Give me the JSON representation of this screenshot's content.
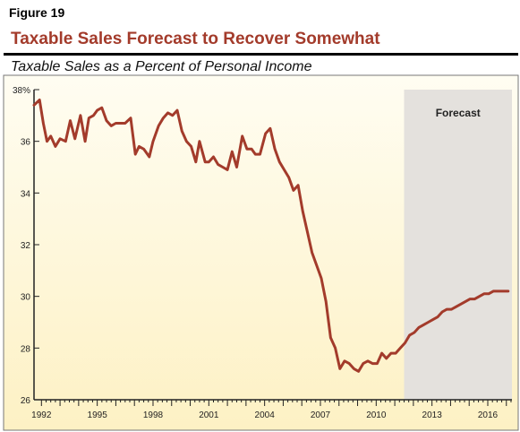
{
  "figure_label": "Figure 19",
  "chart_data": {
    "type": "line",
    "title": "Taxable Sales Forecast to Recover Somewhat",
    "subtitle": "Taxable Sales as a Percent of Personal Income",
    "xlabel": "",
    "ylabel": "",
    "xlim": [
      1991.6,
      2017.3
    ],
    "ylim": [
      26,
      38
    ],
    "y_ticks": [
      26,
      28,
      30,
      32,
      34,
      36,
      38
    ],
    "y_tick_labels": [
      "26",
      "28",
      "30",
      "32",
      "34",
      "36",
      "38%"
    ],
    "x_ticks": [
      1992,
      1995,
      1998,
      2001,
      2004,
      2007,
      2010,
      2013,
      2016
    ],
    "x_tick_labels": [
      "1992",
      "1995",
      "1998",
      "2001",
      "2004",
      "2007",
      "2010",
      "2013",
      "2016"
    ],
    "grid": false,
    "shaded_region": {
      "from": 2011.5,
      "to": 2017.3,
      "label": "Forecast",
      "color": "#e4e1dd"
    },
    "colors": {
      "line": "#a33b2b",
      "background_top": "#fffdf2",
      "background_bottom": "#fdf1c4"
    },
    "series": [
      {
        "x": [
          1991.6,
          1991.9,
          1992.1,
          1992.3,
          1992.5,
          1992.75,
          1993.0,
          1993.3,
          1993.55,
          1993.8,
          1994.1,
          1994.35,
          1994.55,
          1994.8,
          1995.0,
          1995.25,
          1995.5,
          1995.75,
          1996.0,
          1996.25,
          1996.5,
          1996.8,
          1997.05,
          1997.25,
          1997.5,
          1997.8,
          1998.0,
          1998.3,
          1998.55,
          1998.8,
          1999.05,
          1999.3,
          1999.55,
          1999.8,
          2000.05,
          2000.3,
          2000.5,
          2000.8,
          2001.0,
          2001.25,
          2001.5,
          2001.75,
          2002.0,
          2002.25,
          2002.5,
          2002.8,
          2003.05,
          2003.3,
          2003.5,
          2003.75,
          2004.05,
          2004.3,
          2004.55,
          2004.8,
          2005.05,
          2005.3,
          2005.55,
          2005.8,
          2006.05,
          2006.3,
          2006.55,
          2006.8,
          2007.05,
          2007.3,
          2007.55,
          2007.8,
          2008.05,
          2008.3,
          2008.55,
          2008.8,
          2009.05,
          2009.3,
          2009.55,
          2009.8,
          2010.05,
          2010.3,
          2010.55,
          2010.8,
          2011.05,
          2011.3,
          2011.55,
          2011.8,
          2012.05,
          2012.3,
          2012.55,
          2012.8,
          2013.05,
          2013.3,
          2013.55,
          2013.8,
          2014.05,
          2014.3,
          2014.55,
          2014.8,
          2015.05,
          2015.3,
          2015.55,
          2015.8,
          2016.05,
          2016.3,
          2016.55,
          2016.8,
          2017.1
        ],
        "y": [
          37.4,
          37.6,
          36.7,
          36.0,
          36.2,
          35.8,
          36.1,
          36.0,
          36.8,
          36.1,
          37.0,
          36.0,
          36.9,
          37.0,
          37.2,
          37.3,
          36.8,
          36.6,
          36.7,
          36.7,
          36.7,
          36.9,
          35.5,
          35.8,
          35.7,
          35.4,
          36.0,
          36.6,
          36.9,
          37.1,
          37.0,
          37.2,
          36.4,
          36.0,
          35.8,
          35.2,
          36.0,
          35.2,
          35.2,
          35.4,
          35.1,
          35.0,
          34.9,
          35.6,
          35.0,
          36.2,
          35.7,
          35.7,
          35.5,
          35.5,
          36.3,
          36.5,
          35.7,
          35.2,
          34.9,
          34.6,
          34.1,
          34.3,
          33.3,
          32.5,
          31.7,
          31.2,
          30.7,
          29.8,
          28.4,
          28.0,
          27.2,
          27.5,
          27.4,
          27.2,
          27.1,
          27.4,
          27.5,
          27.4,
          27.4,
          27.8,
          27.6,
          27.8,
          27.8,
          28.0,
          28.2,
          28.5,
          28.6,
          28.8,
          28.9,
          29.0,
          29.1,
          29.2,
          29.4,
          29.5,
          29.5,
          29.6,
          29.7,
          29.8,
          29.9,
          29.9,
          30.0,
          30.1,
          30.1,
          30.2,
          30.2,
          30.2,
          30.2
        ]
      }
    ]
  }
}
